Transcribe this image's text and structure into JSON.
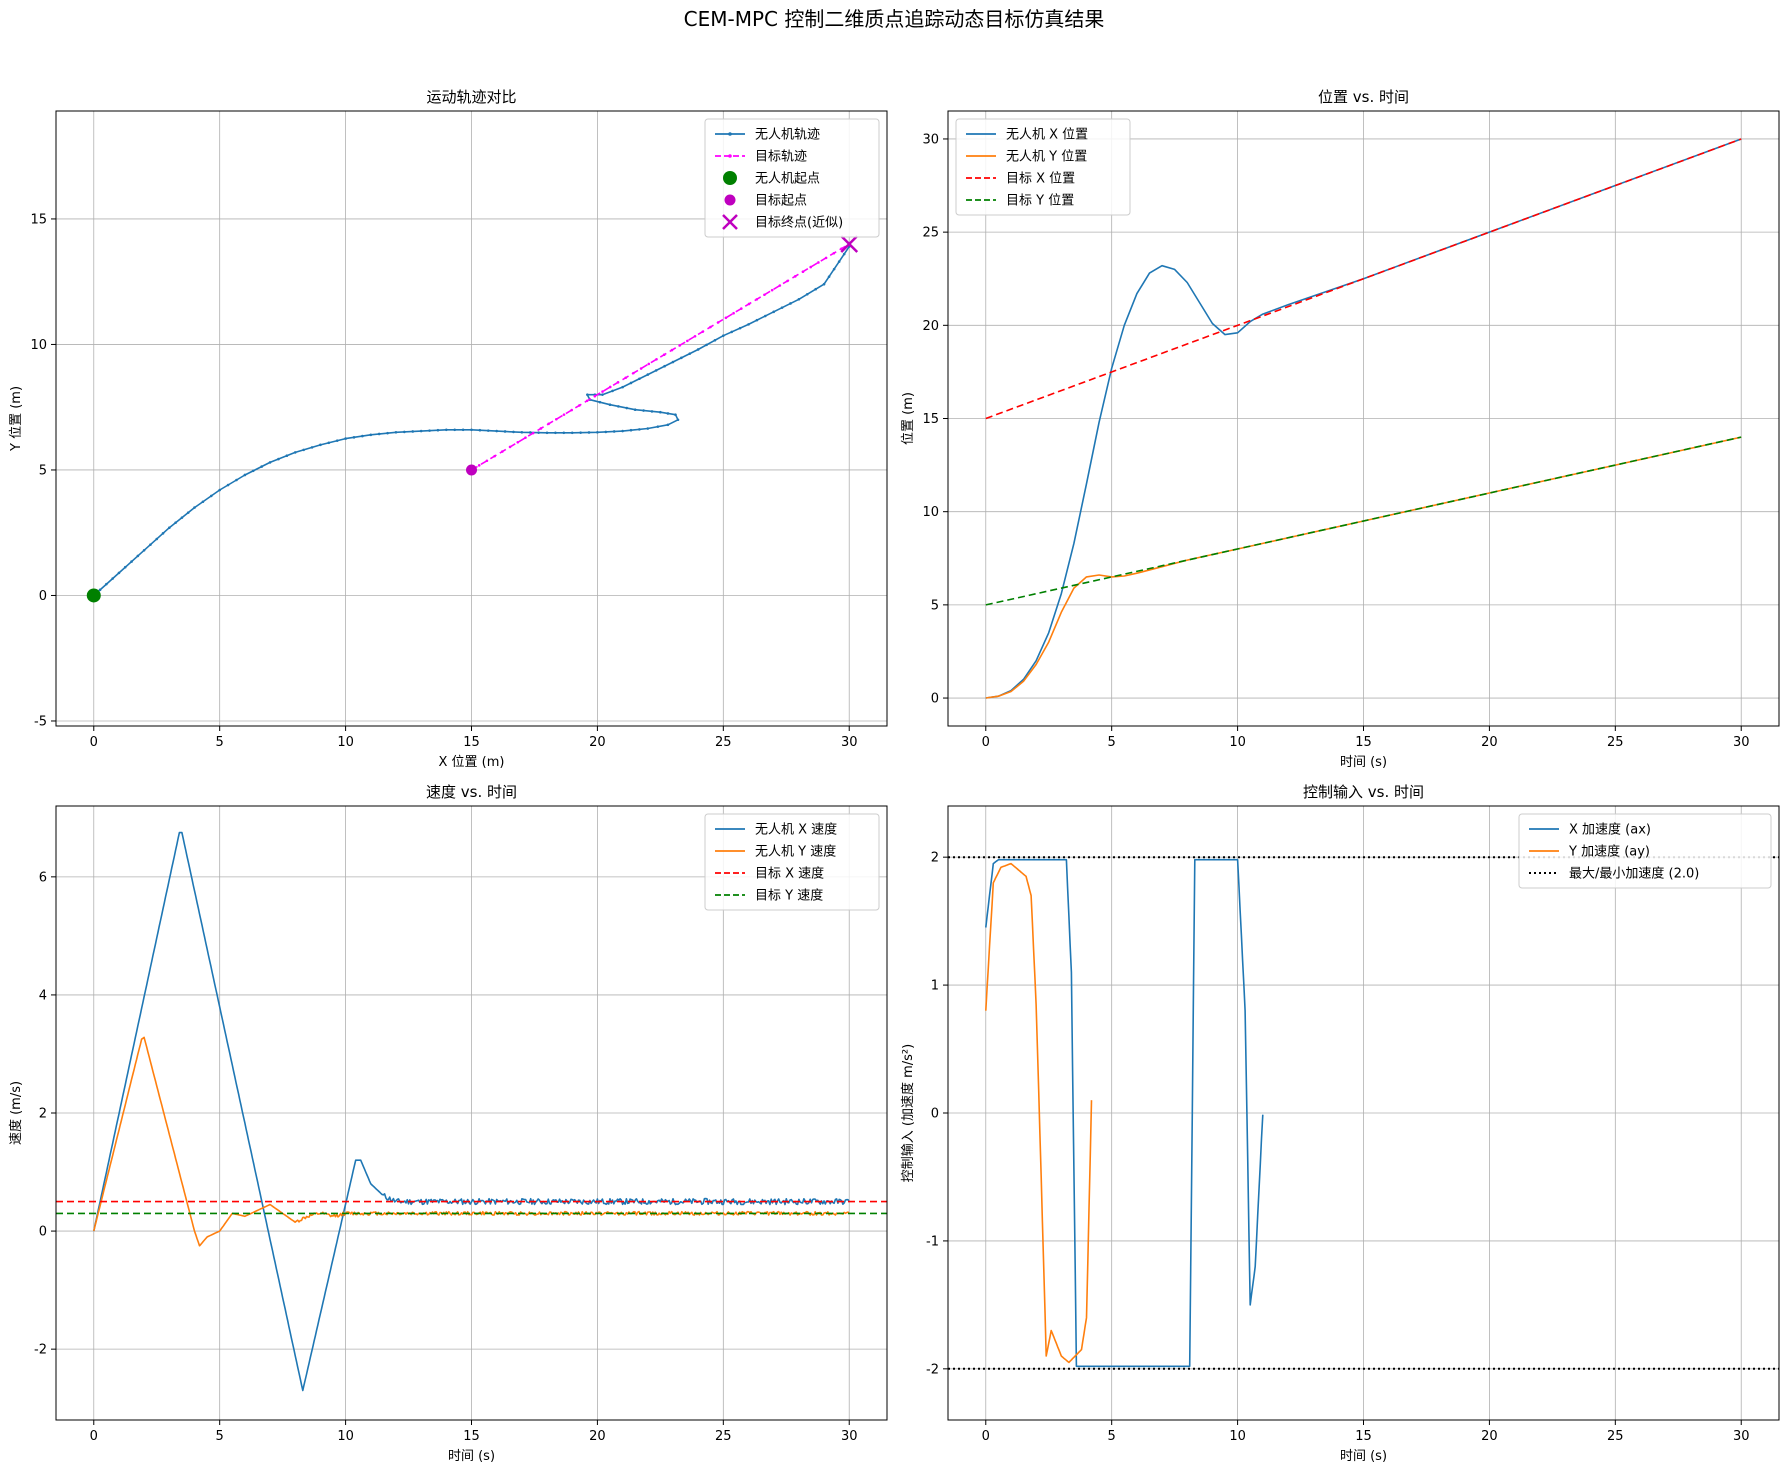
{
  "figure": {
    "suptitle": "CEM-MPC 控制二维质点追踪动态目标仿真结果"
  },
  "chart_data": [
    {
      "id": "traj",
      "type": "line",
      "title": "运动轨迹对比",
      "xlabel": "X 位置 (m)",
      "ylabel": "Y 位置 (m)",
      "xlim": [
        -1.5,
        31.5
      ],
      "ylim": [
        -5.2,
        19.3
      ],
      "xticks": [
        0,
        5,
        10,
        15,
        20,
        25,
        30
      ],
      "yticks": [
        -5,
        0,
        5,
        10,
        15
      ],
      "grid": true,
      "legend": "top-right",
      "series": [
        {
          "name": "无人机轨迹",
          "color": "#1f77b4",
          "style": "solid",
          "marker": "dot",
          "points": [
            [
              0,
              0
            ],
            [
              1,
              0.9
            ],
            [
              2,
              1.8
            ],
            [
              3,
              2.7
            ],
            [
              4,
              3.5
            ],
            [
              5,
              4.2
            ],
            [
              6,
              4.8
            ],
            [
              7,
              5.3
            ],
            [
              8,
              5.7
            ],
            [
              9,
              6.0
            ],
            [
              10,
              6.25
            ],
            [
              11,
              6.4
            ],
            [
              12,
              6.5
            ],
            [
              13,
              6.55
            ],
            [
              14,
              6.6
            ],
            [
              15,
              6.6
            ],
            [
              16,
              6.55
            ],
            [
              17,
              6.5
            ],
            [
              18,
              6.48
            ],
            [
              19,
              6.48
            ],
            [
              20,
              6.5
            ],
            [
              21,
              6.55
            ],
            [
              22,
              6.65
            ],
            [
              22.8,
              6.8
            ],
            [
              23.2,
              7.0
            ],
            [
              23.1,
              7.2
            ],
            [
              22.5,
              7.3
            ],
            [
              21.5,
              7.4
            ],
            [
              20.5,
              7.6
            ],
            [
              19.7,
              7.8
            ],
            [
              19.6,
              8.0
            ],
            [
              20.2,
              8.0
            ],
            [
              21,
              8.3
            ],
            [
              22,
              8.8
            ],
            [
              23,
              9.3
            ],
            [
              24,
              9.8
            ],
            [
              25,
              10.35
            ],
            [
              26,
              10.8
            ],
            [
              27,
              11.3
            ],
            [
              28,
              11.8
            ],
            [
              29,
              12.4
            ],
            [
              30,
              13.9
            ]
          ]
        },
        {
          "name": "目标轨迹",
          "color": "#ff00ff",
          "style": "dashed",
          "marker": "dot",
          "points": [
            [
              15,
              5
            ],
            [
              30,
              14
            ]
          ]
        },
        {
          "name": "无人机起点",
          "color": "#008000",
          "type": "marker",
          "marker": "circle",
          "points": [
            [
              0,
              0
            ]
          ]
        },
        {
          "name": "目标起点",
          "color": "#bf00bf",
          "type": "marker",
          "marker": "circle-small",
          "points": [
            [
              15,
              5
            ]
          ]
        },
        {
          "name": "目标终点(近似)",
          "color": "#bf00bf",
          "type": "marker",
          "marker": "x",
          "points": [
            [
              30,
              14
            ]
          ]
        }
      ]
    },
    {
      "id": "pos",
      "type": "line",
      "title": "位置 vs. 时间",
      "xlabel": "时间 (s)",
      "ylabel": "位置 (m)",
      "xlim": [
        -1.5,
        31.5
      ],
      "ylim": [
        -1.5,
        31.5
      ],
      "xticks": [
        0,
        5,
        10,
        15,
        20,
        25,
        30
      ],
      "yticks": [
        0,
        5,
        10,
        15,
        20,
        25,
        30
      ],
      "grid": true,
      "legend": "top-left",
      "series": [
        {
          "name": "无人机 X 位置",
          "color": "#1f77b4",
          "style": "solid",
          "points": [
            [
              0,
              0
            ],
            [
              0.5,
              0.1
            ],
            [
              1,
              0.4
            ],
            [
              1.5,
              1.0
            ],
            [
              2,
              2.0
            ],
            [
              2.5,
              3.5
            ],
            [
              3,
              5.6
            ],
            [
              3.5,
              8.3
            ],
            [
              4,
              11.5
            ],
            [
              4.5,
              14.8
            ],
            [
              5,
              17.7
            ],
            [
              5.5,
              20.0
            ],
            [
              6,
              21.7
            ],
            [
              6.5,
              22.8
            ],
            [
              7,
              23.2
            ],
            [
              7.5,
              23.0
            ],
            [
              8,
              22.3
            ],
            [
              8.5,
              21.2
            ],
            [
              9,
              20.1
            ],
            [
              9.5,
              19.5
            ],
            [
              10,
              19.6
            ],
            [
              10.5,
              20.2
            ],
            [
              11,
              20.6
            ],
            [
              12,
              21.1
            ],
            [
              15,
              22.5
            ],
            [
              20,
              25.0
            ],
            [
              25,
              27.5
            ],
            [
              30,
              30.0
            ]
          ]
        },
        {
          "name": "无人机 Y 位置",
          "color": "#ff7f0e",
          "style": "solid",
          "points": [
            [
              0,
              0
            ],
            [
              0.5,
              0.1
            ],
            [
              1,
              0.35
            ],
            [
              1.5,
              0.9
            ],
            [
              2,
              1.8
            ],
            [
              2.5,
              3.0
            ],
            [
              3,
              4.6
            ],
            [
              3.5,
              5.9
            ],
            [
              4,
              6.5
            ],
            [
              4.5,
              6.6
            ],
            [
              5,
              6.5
            ],
            [
              5.5,
              6.55
            ],
            [
              6,
              6.7
            ],
            [
              7,
              7.05
            ],
            [
              8,
              7.4
            ],
            [
              9,
              7.7
            ],
            [
              10,
              8.0
            ],
            [
              15,
              9.5
            ],
            [
              20,
              11.0
            ],
            [
              25,
              12.5
            ],
            [
              30,
              14.0
            ]
          ]
        },
        {
          "name": "目标 X 位置",
          "color": "#ff0000",
          "style": "dashed",
          "points": [
            [
              0,
              15
            ],
            [
              30,
              30
            ]
          ]
        },
        {
          "name": "目标 Y 位置",
          "color": "#008000",
          "style": "dashed",
          "points": [
            [
              0,
              5
            ],
            [
              30,
              14
            ]
          ]
        }
      ]
    },
    {
      "id": "vel",
      "type": "line",
      "title": "速度 vs. 时间",
      "xlabel": "时间 (s)",
      "ylabel": "速度 (m/s)",
      "xlim": [
        -1.5,
        31.5
      ],
      "ylim": [
        -3.2,
        7.2
      ],
      "xticks": [
        0,
        5,
        10,
        15,
        20,
        25,
        30
      ],
      "yticks": [
        -2,
        0,
        2,
        4,
        6
      ],
      "grid": true,
      "legend": "top-right",
      "series": [
        {
          "name": "无人机 X 速度",
          "color": "#1f77b4",
          "style": "solid",
          "noise": 0.05,
          "noise_from": 11.5,
          "noise_to": 30,
          "points": [
            [
              0,
              0
            ],
            [
              3.4,
              6.75
            ],
            [
              3.5,
              6.75
            ],
            [
              8.3,
              -2.7
            ],
            [
              10.4,
              1.2
            ],
            [
              10.6,
              1.2
            ],
            [
              11,
              0.8
            ],
            [
              11.5,
              0.6
            ],
            [
              12,
              0.5
            ],
            [
              30,
              0.5
            ]
          ]
        },
        {
          "name": "无人机 Y 速度",
          "color": "#ff7f0e",
          "style": "solid",
          "noise": 0.03,
          "noise_from": 8,
          "noise_to": 30,
          "points": [
            [
              0,
              0
            ],
            [
              1.9,
              3.25
            ],
            [
              2.0,
              3.28
            ],
            [
              4.0,
              0.0
            ],
            [
              4.2,
              -0.25
            ],
            [
              4.5,
              -0.1
            ],
            [
              5,
              0.0
            ],
            [
              5.5,
              0.3
            ],
            [
              6,
              0.25
            ],
            [
              6.5,
              0.35
            ],
            [
              7,
              0.45
            ],
            [
              7.5,
              0.3
            ],
            [
              8,
              0.15
            ],
            [
              8.5,
              0.25
            ],
            [
              9,
              0.3
            ],
            [
              9.5,
              0.25
            ],
            [
              10,
              0.3
            ],
            [
              30,
              0.3
            ]
          ]
        },
        {
          "name": "目标 X 速度",
          "color": "#ff0000",
          "style": "dashed",
          "fullwidth": true,
          "points": [
            [
              -1.5,
              0.5
            ],
            [
              31.5,
              0.5
            ]
          ]
        },
        {
          "name": "目标 Y 速度",
          "color": "#008000",
          "style": "dashed",
          "fullwidth": true,
          "points": [
            [
              -1.5,
              0.3
            ],
            [
              31.5,
              0.3
            ]
          ]
        }
      ]
    },
    {
      "id": "ctrl",
      "type": "line",
      "title": "控制输入 vs. 时间",
      "xlabel": "时间 (s)",
      "ylabel": "控制输入 (加速度 m/s²)",
      "xlim": [
        -1.5,
        31.5
      ],
      "ylim": [
        -2.4,
        2.4
      ],
      "xticks": [
        0,
        5,
        10,
        15,
        20,
        25,
        30
      ],
      "yticks": [
        -2,
        -1,
        0,
        1,
        2
      ],
      "ytick_labels": [
        "-2",
        "-1",
        "0",
        "1",
        "2"
      ],
      "grid": true,
      "legend": "top-right",
      "series": [
        {
          "name": "X 加速度 (ax)",
          "color": "#1f77b4",
          "style": "solid",
          "noise": 0.7,
          "noise_from": 11,
          "noise_to": 30,
          "noise_seed": 7,
          "points": [
            [
              0,
              1.45
            ],
            [
              0.3,
              1.95
            ],
            [
              0.5,
              1.98
            ],
            [
              3.2,
              1.98
            ],
            [
              3.4,
              1.1
            ],
            [
              3.6,
              -1.98
            ],
            [
              8.1,
              -1.98
            ],
            [
              8.3,
              1.98
            ],
            [
              10,
              1.98
            ],
            [
              10.3,
              0.8
            ],
            [
              10.5,
              -1.5
            ],
            [
              10.7,
              -1.2
            ],
            [
              11,
              0
            ]
          ]
        },
        {
          "name": "Y 加速度 (ay)",
          "color": "#ff7f0e",
          "style": "solid",
          "noise": 0.75,
          "noise_from": 4.4,
          "noise_to": 30,
          "noise_seed": 3,
          "points": [
            [
              0,
              0.8
            ],
            [
              0.3,
              1.8
            ],
            [
              0.6,
              1.92
            ],
            [
              1.0,
              1.95
            ],
            [
              1.6,
              1.85
            ],
            [
              1.8,
              1.7
            ],
            [
              2.0,
              0.85
            ],
            [
              2.2,
              -0.5
            ],
            [
              2.4,
              -1.9
            ],
            [
              2.6,
              -1.7
            ],
            [
              3.0,
              -1.9
            ],
            [
              3.3,
              -1.95
            ],
            [
              3.8,
              -1.85
            ],
            [
              4.0,
              -1.6
            ],
            [
              4.2,
              0.1
            ]
          ]
        },
        {
          "name": "最大/最小加速度 (2.0)",
          "color": "#000000",
          "style": "dotted",
          "fullwidth": true,
          "points": [
            [
              -1.5,
              2.0
            ],
            [
              31.5,
              2.0
            ]
          ]
        },
        {
          "name": "",
          "color": "#000000",
          "style": "dotted",
          "fullwidth": true,
          "legend": false,
          "points": [
            [
              -1.5,
              -2.0
            ],
            [
              31.5,
              -2.0
            ]
          ]
        }
      ]
    }
  ]
}
